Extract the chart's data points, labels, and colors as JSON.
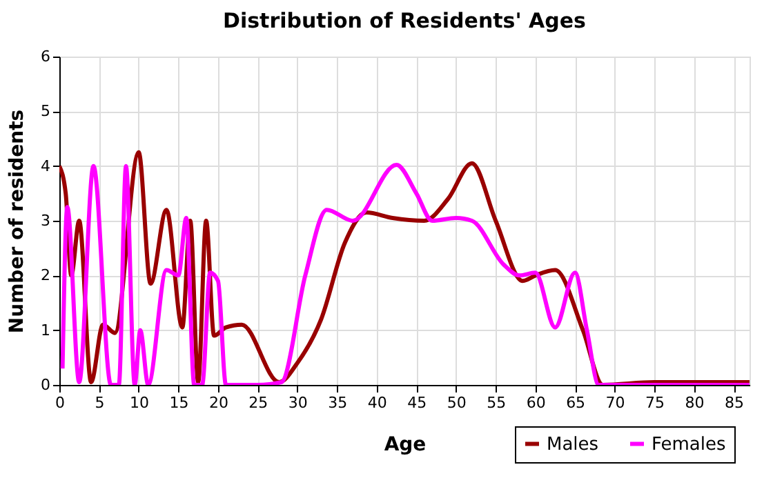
{
  "chart_data": {
    "type": "line",
    "title": "Distribution of Residents' Ages",
    "xlabel": "Age",
    "ylabel": "Number of residents",
    "xlim": [
      0,
      87
    ],
    "xticks": [
      0,
      5,
      10,
      15,
      20,
      25,
      30,
      35,
      40,
      45,
      50,
      55,
      60,
      65,
      70,
      75,
      80,
      85
    ],
    "ylim": [
      0,
      6
    ],
    "yticks": [
      0,
      1,
      2,
      3,
      4,
      5,
      6
    ],
    "grid": true,
    "legend": "bottom right",
    "marker": "none",
    "line_style": "solid",
    "series": [
      {
        "name": "Males",
        "color": "#990000",
        "x": [
          0,
          0.8,
          1.5,
          2.5,
          4,
          5.5,
          7,
          10,
          11.5,
          13.5,
          15.5,
          16.5,
          17.5,
          18.5,
          19.5,
          21,
          23,
          27.7,
          30,
          33,
          36,
          38.7,
          42,
          46,
          49,
          52,
          55,
          58.4,
          60,
          62.5,
          66,
          68.5,
          75,
          87
        ],
        "values": [
          4,
          3.5,
          2,
          3,
          0.05,
          1.1,
          0.95,
          4.25,
          1.85,
          3.2,
          1.05,
          3,
          0.05,
          3,
          0.9,
          1.05,
          1.1,
          0.05,
          0.4,
          1.2,
          2.6,
          3.15,
          3.05,
          3,
          3.4,
          4.05,
          3,
          1.9,
          2,
          2.1,
          1,
          0,
          0.05,
          0.05
        ]
      },
      {
        "name": "Females",
        "color": "#ff00ff",
        "x": [
          0.4,
          1,
          2.5,
          4.3,
          6.5,
          7.5,
          8.4,
          9.5,
          10.2,
          11.2,
          13.5,
          15,
          16,
          17,
          18,
          19,
          20,
          21,
          25,
          28,
          31,
          33.7,
          37,
          42.5,
          45,
          47,
          50,
          52,
          56,
          58,
          60,
          62.5,
          65,
          66.5,
          68,
          87
        ],
        "values": [
          0.3,
          3.25,
          0.05,
          4,
          0,
          0,
          4,
          0,
          1,
          0,
          2.1,
          2,
          3.05,
          0,
          0,
          2.05,
          1.9,
          0,
          0,
          0.05,
          2,
          3.2,
          3,
          4.02,
          3.5,
          3,
          3.05,
          3,
          2.2,
          2,
          2.05,
          1.05,
          2.05,
          1,
          0,
          0
        ]
      }
    ]
  }
}
